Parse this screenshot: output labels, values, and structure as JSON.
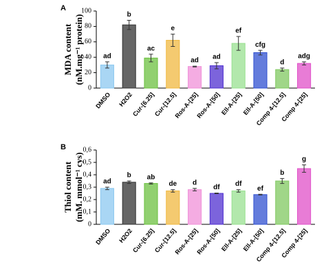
{
  "chart_data": [
    {
      "type": "bar",
      "panel": "A",
      "ylabel": [
        "MDA content",
        "(nM.mg⁻¹ protein)"
      ],
      "categories": [
        "DMSO",
        "H2O2",
        "Cur-[6.25]",
        "Cur-[12.5]",
        "Ros-A-[25]",
        "Ros-A-[50]",
        "Ell-A-[25]",
        "Ell-A-[50]",
        "Comp 4-[12.5]",
        "Comp 4-[25]"
      ],
      "values": [
        30,
        82,
        39,
        62,
        28,
        29,
        58,
        46,
        24,
        32
      ],
      "errors": [
        4,
        6,
        5,
        8,
        0.5,
        4,
        9,
        3,
        2,
        2
      ],
      "annotations": [
        "ad",
        "b",
        "ac",
        "e",
        "ad",
        "ad",
        "ef",
        "cfg",
        "d",
        "adg"
      ],
      "colors": [
        "#8cc8f0",
        "#333333",
        "#6cc040",
        "#f0b840",
        "#f090d8",
        "#5030d0",
        "#98e090",
        "#3050d0",
        "#80c860",
        "#e050c8"
      ],
      "ylim": [
        0,
        100
      ],
      "yticks": [
        0,
        20,
        40,
        60,
        80,
        100
      ]
    },
    {
      "type": "bar",
      "panel": "B",
      "ylabel": [
        "Thiol content",
        "(mM. mmol⁻¹ cys)"
      ],
      "categories": [
        "DMSO",
        "H2O2",
        "Cur-[6.25]",
        "Cur-[12.5]",
        "Ros-A-[25]",
        "Ros-A-[50]",
        "Ell-A-[25]",
        "Ell-A-[50]",
        "Comp 4-[12.5]",
        "Comp 4-[25]"
      ],
      "values": [
        0.29,
        0.34,
        0.33,
        0.27,
        0.28,
        0.25,
        0.27,
        0.24,
        0.35,
        0.45
      ],
      "errors": [
        0.01,
        0.01,
        0.005,
        0.01,
        0.01,
        0.003,
        0.01,
        0.003,
        0.02,
        0.03
      ],
      "annotations": [
        "ad",
        "b",
        "ab",
        "de",
        "d",
        "df",
        "df",
        "ef",
        "b",
        "g"
      ],
      "colors": [
        "#8cc8f0",
        "#333333",
        "#6cc040",
        "#f0b840",
        "#f090d8",
        "#5030d0",
        "#98e090",
        "#3050d0",
        "#80c860",
        "#e050c8"
      ],
      "ylim": [
        0,
        0.6
      ],
      "yticks": [
        0,
        {
          "value": 0.1,
          "label": "0,1"
        },
        {
          "value": 0.2,
          "label": "0,2"
        },
        {
          "value": 0.3,
          "label": "0,3"
        },
        {
          "value": 0.4,
          "label": "0,4"
        },
        {
          "value": 0.5,
          "label": "0,5"
        },
        {
          "value": 0.6,
          "label": "0,6"
        }
      ]
    }
  ]
}
